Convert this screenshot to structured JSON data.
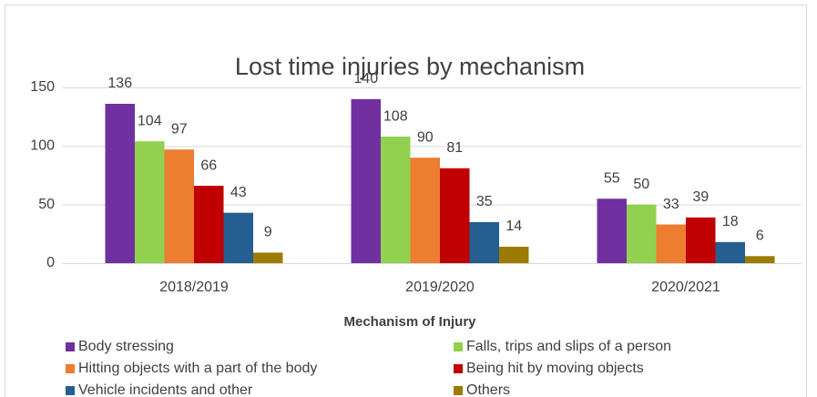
{
  "chart_data": {
    "type": "bar",
    "title": "Lost time injuries by mechanism",
    "categories": [
      "2018/2019",
      "2019/2020",
      "2020/2021"
    ],
    "series": [
      {
        "name": "Body stressing",
        "color": "#7030a0",
        "values": [
          136,
          140,
          55
        ]
      },
      {
        "name": "Falls, trips and slips of a person",
        "color": "#92d050",
        "values": [
          104,
          108,
          50
        ]
      },
      {
        "name": "Hitting objects with a part of the body",
        "color": "#ed7d31",
        "values": [
          97,
          90,
          33
        ]
      },
      {
        "name": "Being hit by moving objects",
        "color": "#c00000",
        "values": [
          66,
          81,
          39
        ]
      },
      {
        "name": "Vehicle incidents and other",
        "color": "#255e91",
        "values": [
          43,
          35,
          18
        ]
      },
      {
        "name": "Others",
        "color": "#9c7b00",
        "values": [
          9,
          14,
          6
        ]
      }
    ],
    "legend_title": "Mechanism of Injury",
    "ylim": [
      0,
      150
    ],
    "yticks": [
      0,
      50,
      100,
      150
    ],
    "grid": true
  }
}
